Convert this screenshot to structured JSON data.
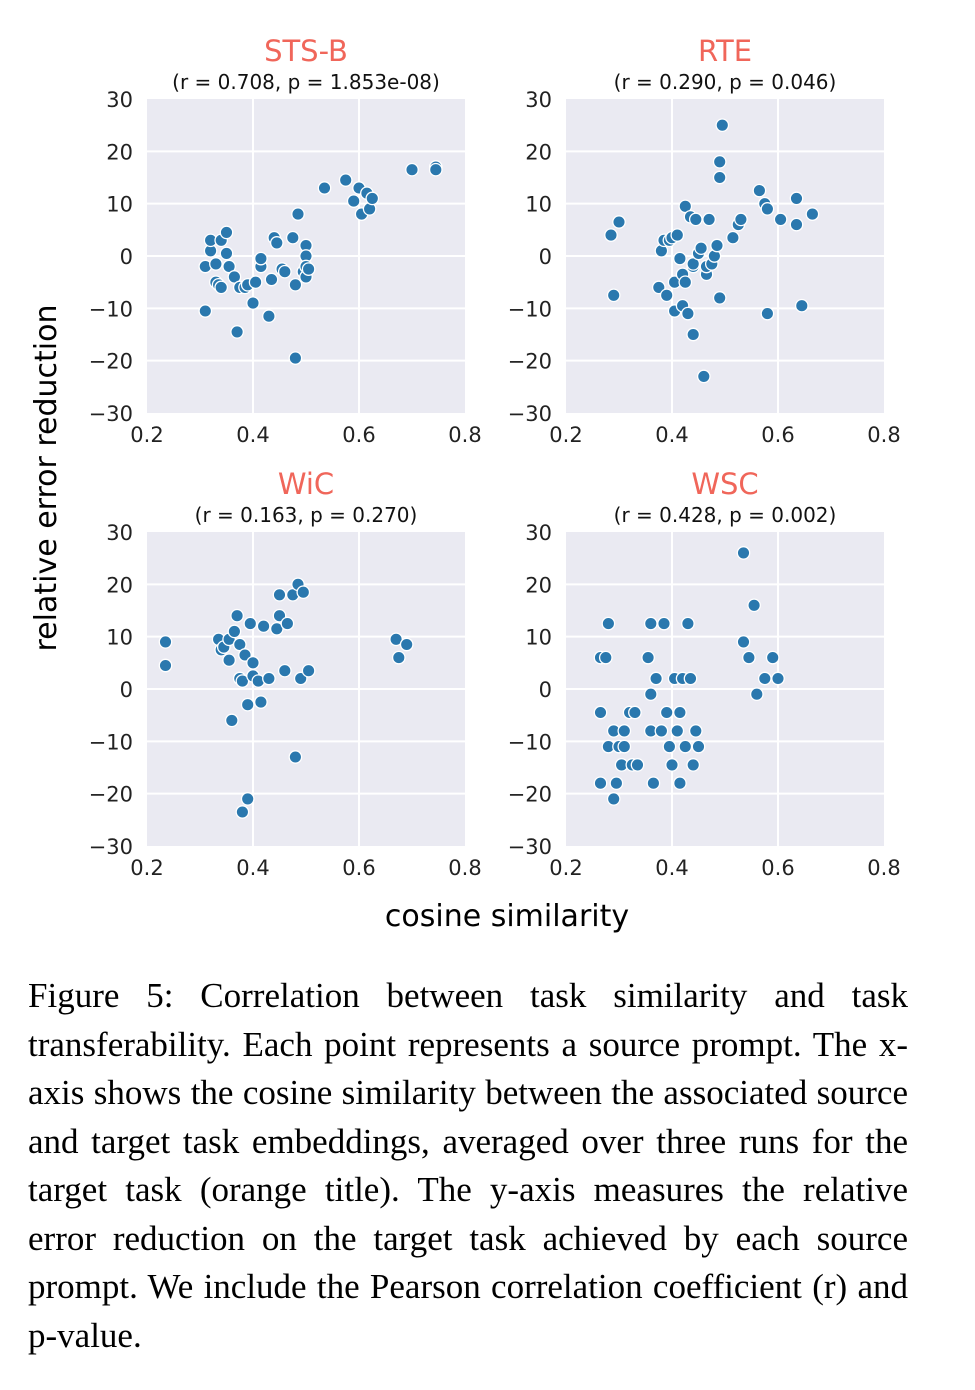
{
  "figure": {
    "y_axis_label": "relative error reduction",
    "x_axis_label": "cosine similarity",
    "caption": "Figure 5: Correlation between task similarity and task transferability. Each point represents a source prompt. The x-axis shows the cosine similarity between the associated source and target task embeddings, averaged over three runs for the target task (orange title). The y-axis measures the relative error reduction on the target task achieved by each source prompt. We include the Pearson correlation coefficient (r) and p-value.",
    "title_color": "#f0665a",
    "point_color": "#2a78ae",
    "panel_background": "#eaeaf2"
  },
  "chart_data": [
    {
      "type": "scatter",
      "title": "STS-B",
      "subtitle": "(r = 0.708, p = 1.853e-08)",
      "xlim": [
        0.2,
        0.8
      ],
      "ylim": [
        -30,
        30
      ],
      "xticks": [
        "0.2",
        "0.4",
        "0.6",
        "0.8"
      ],
      "yticks": [
        "30",
        "20",
        "10",
        "0",
        "−10",
        "−20",
        "−30"
      ],
      "grid": true,
      "points": [
        [
          0.31,
          -10.5
        ],
        [
          0.31,
          -2
        ],
        [
          0.32,
          1
        ],
        [
          0.32,
          3
        ],
        [
          0.33,
          -1.5
        ],
        [
          0.33,
          -5
        ],
        [
          0.335,
          -5.5
        ],
        [
          0.34,
          -6
        ],
        [
          0.34,
          3
        ],
        [
          0.35,
          4.5
        ],
        [
          0.35,
          0.5
        ],
        [
          0.355,
          -2
        ],
        [
          0.365,
          -4
        ],
        [
          0.37,
          -14.5
        ],
        [
          0.375,
          -6
        ],
        [
          0.385,
          -6
        ],
        [
          0.39,
          -5.5
        ],
        [
          0.4,
          -9
        ],
        [
          0.405,
          -5
        ],
        [
          0.415,
          -2
        ],
        [
          0.415,
          -0.5
        ],
        [
          0.43,
          -11.5
        ],
        [
          0.435,
          -4.5
        ],
        [
          0.44,
          3.5
        ],
        [
          0.445,
          2.5
        ],
        [
          0.455,
          -2.5
        ],
        [
          0.46,
          -3
        ],
        [
          0.475,
          3.5
        ],
        [
          0.48,
          -5.5
        ],
        [
          0.48,
          -19.5
        ],
        [
          0.485,
          8
        ],
        [
          0.495,
          -3
        ],
        [
          0.5,
          2
        ],
        [
          0.5,
          0
        ],
        [
          0.5,
          -4
        ],
        [
          0.5,
          -2
        ],
        [
          0.505,
          -2.5
        ],
        [
          0.535,
          13
        ],
        [
          0.575,
          14.5
        ],
        [
          0.59,
          10.5
        ],
        [
          0.6,
          13
        ],
        [
          0.605,
          8
        ],
        [
          0.615,
          12
        ],
        [
          0.62,
          9
        ],
        [
          0.625,
          11
        ],
        [
          0.7,
          16.5
        ],
        [
          0.745,
          17
        ],
        [
          0.745,
          16.5
        ]
      ]
    },
    {
      "type": "scatter",
      "title": "RTE",
      "subtitle": "(r = 0.290, p = 0.046)",
      "xlim": [
        0.2,
        0.8
      ],
      "ylim": [
        -30,
        30
      ],
      "xticks": [
        "0.2",
        "0.4",
        "0.6",
        "0.8"
      ],
      "yticks": [
        "30",
        "20",
        "10",
        "0",
        "−10",
        "−20",
        "−30"
      ],
      "grid": true,
      "points": [
        [
          0.285,
          4
        ],
        [
          0.29,
          -7.5
        ],
        [
          0.3,
          6.5
        ],
        [
          0.375,
          -6
        ],
        [
          0.38,
          1
        ],
        [
          0.385,
          3
        ],
        [
          0.39,
          -7.5
        ],
        [
          0.395,
          3
        ],
        [
          0.4,
          3.5
        ],
        [
          0.405,
          -5
        ],
        [
          0.405,
          -10.5
        ],
        [
          0.41,
          4
        ],
        [
          0.415,
          -0.5
        ],
        [
          0.42,
          -3.5
        ],
        [
          0.42,
          -9.5
        ],
        [
          0.425,
          -5
        ],
        [
          0.425,
          9.5
        ],
        [
          0.43,
          -11
        ],
        [
          0.435,
          7.5
        ],
        [
          0.44,
          -15
        ],
        [
          0.44,
          -2
        ],
        [
          0.44,
          -1.5
        ],
        [
          0.445,
          7
        ],
        [
          0.45,
          0.5
        ],
        [
          0.455,
          1.5
        ],
        [
          0.46,
          -23
        ],
        [
          0.465,
          -3.5
        ],
        [
          0.465,
          -2
        ],
        [
          0.47,
          7
        ],
        [
          0.475,
          -1.5
        ],
        [
          0.48,
          0
        ],
        [
          0.485,
          2
        ],
        [
          0.49,
          15
        ],
        [
          0.49,
          18
        ],
        [
          0.49,
          -8
        ],
        [
          0.495,
          25
        ],
        [
          0.515,
          3.5
        ],
        [
          0.525,
          6
        ],
        [
          0.53,
          7
        ],
        [
          0.565,
          12.5
        ],
        [
          0.575,
          10
        ],
        [
          0.58,
          9
        ],
        [
          0.58,
          -11
        ],
        [
          0.605,
          7
        ],
        [
          0.635,
          11
        ],
        [
          0.635,
          6
        ],
        [
          0.645,
          -9.5
        ],
        [
          0.665,
          8
        ]
      ]
    },
    {
      "type": "scatter",
      "title": "WiC",
      "subtitle": "(r = 0.163, p = 0.270)",
      "xlim": [
        0.2,
        0.8
      ],
      "ylim": [
        -30,
        30
      ],
      "xticks": [
        "0.2",
        "0.4",
        "0.6",
        "0.8"
      ],
      "yticks": [
        "30",
        "20",
        "10",
        "0",
        "−10",
        "−20",
        "−30"
      ],
      "grid": true,
      "points": [
        [
          0.235,
          9
        ],
        [
          0.235,
          4.5
        ],
        [
          0.335,
          9.5
        ],
        [
          0.34,
          7.5
        ],
        [
          0.345,
          8
        ],
        [
          0.355,
          9.5
        ],
        [
          0.355,
          5.5
        ],
        [
          0.36,
          -6
        ],
        [
          0.365,
          11
        ],
        [
          0.37,
          14
        ],
        [
          0.375,
          2
        ],
        [
          0.375,
          8.5
        ],
        [
          0.38,
          1.5
        ],
        [
          0.38,
          -23.5
        ],
        [
          0.385,
          6.5
        ],
        [
          0.39,
          -3
        ],
        [
          0.39,
          -21
        ],
        [
          0.395,
          12.5
        ],
        [
          0.4,
          2.5
        ],
        [
          0.4,
          5
        ],
        [
          0.41,
          1.5
        ],
        [
          0.415,
          -2.5
        ],
        [
          0.42,
          12
        ],
        [
          0.43,
          2
        ],
        [
          0.445,
          11.5
        ],
        [
          0.45,
          18
        ],
        [
          0.45,
          14
        ],
        [
          0.46,
          3.5
        ],
        [
          0.465,
          12.5
        ],
        [
          0.475,
          18
        ],
        [
          0.48,
          -13
        ],
        [
          0.485,
          20
        ],
        [
          0.49,
          2
        ],
        [
          0.495,
          18.5
        ],
        [
          0.505,
          3.5
        ],
        [
          0.67,
          9.5
        ],
        [
          0.675,
          6
        ],
        [
          0.69,
          8.5
        ]
      ]
    },
    {
      "type": "scatter",
      "title": "WSC",
      "subtitle": "(r = 0.428, p = 0.002)",
      "xlim": [
        0.2,
        0.8
      ],
      "ylim": [
        -30,
        30
      ],
      "xticks": [
        "0.2",
        "0.4",
        "0.6",
        "0.8"
      ],
      "yticks": [
        "30",
        "20",
        "10",
        "0",
        "−10",
        "−20",
        "−30"
      ],
      "grid": true,
      "points": [
        [
          0.265,
          6
        ],
        [
          0.265,
          -4.5
        ],
        [
          0.265,
          -18
        ],
        [
          0.275,
          6
        ],
        [
          0.28,
          12.5
        ],
        [
          0.28,
          -11
        ],
        [
          0.29,
          -8
        ],
        [
          0.29,
          -21
        ],
        [
          0.295,
          -18
        ],
        [
          0.3,
          -11
        ],
        [
          0.305,
          -14.5
        ],
        [
          0.31,
          -11
        ],
        [
          0.31,
          -8
        ],
        [
          0.32,
          -4.5
        ],
        [
          0.325,
          -14.5
        ],
        [
          0.33,
          -4.5
        ],
        [
          0.335,
          -14.5
        ],
        [
          0.355,
          6
        ],
        [
          0.36,
          12.5
        ],
        [
          0.36,
          -8
        ],
        [
          0.36,
          -1
        ],
        [
          0.365,
          -18
        ],
        [
          0.37,
          2
        ],
        [
          0.38,
          -8
        ],
        [
          0.385,
          12.5
        ],
        [
          0.39,
          -4.5
        ],
        [
          0.395,
          -11
        ],
        [
          0.4,
          -14.5
        ],
        [
          0.405,
          2
        ],
        [
          0.41,
          -8
        ],
        [
          0.415,
          -4.5
        ],
        [
          0.415,
          -18
        ],
        [
          0.42,
          2
        ],
        [
          0.425,
          -11
        ],
        [
          0.43,
          12.5
        ],
        [
          0.435,
          2
        ],
        [
          0.44,
          -14.5
        ],
        [
          0.445,
          -8
        ],
        [
          0.45,
          -11
        ],
        [
          0.535,
          26
        ],
        [
          0.535,
          9
        ],
        [
          0.545,
          6
        ],
        [
          0.555,
          16
        ],
        [
          0.56,
          -1
        ],
        [
          0.575,
          2
        ],
        [
          0.59,
          6
        ],
        [
          0.6,
          2
        ]
      ]
    }
  ]
}
